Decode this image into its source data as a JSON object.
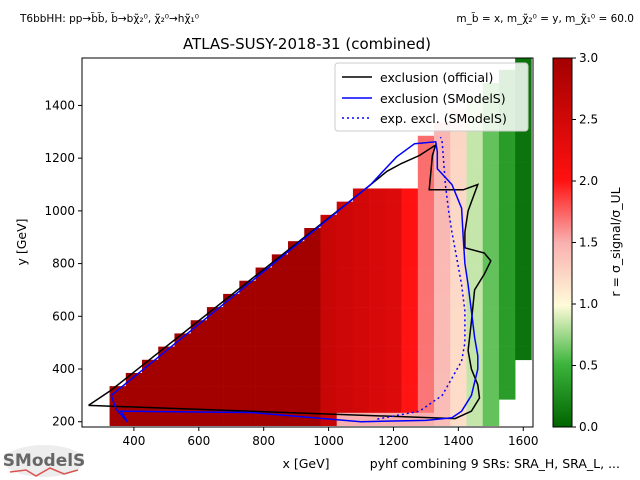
{
  "chart_data": {
    "type": "heatmap",
    "title": "ATLAS-SUSY-2018-31 (combined)",
    "top_left_label": "T6bbHH: pp→b̃b̃, b̃→bχ̃₂⁰, χ̃₂⁰→hχ̃₁⁰",
    "top_right_label": "m_b̃ = x, m_χ̃₂⁰ = y, m_χ̃₁⁰ = 60.0",
    "xlabel": "x [GeV]",
    "ylabel": "y [GeV]",
    "bottom_note": "pyhf combining 9 SRs: SRA_H, SRA_L, ...",
    "colorbar_label": "r = σ_signal/σ_UL",
    "xlim": [
      240,
      1630
    ],
    "ylim": [
      180,
      1580
    ],
    "xticks": [
      400,
      600,
      800,
      1000,
      1200,
      1400,
      1600
    ],
    "yticks": [
      200,
      400,
      600,
      800,
      1000,
      1200,
      1400
    ],
    "colorbar_range": [
      0.0,
      3.0
    ],
    "colorbar_ticks": [
      0.0,
      0.5,
      1.0,
      1.5,
      2.0,
      2.5,
      3.0
    ],
    "legend": {
      "placement": "top-right",
      "entries": [
        {
          "label": "exclusion (official)",
          "color": "#000000",
          "style": "solid"
        },
        {
          "label": "exclusion (SModelS)",
          "color": "#0000ff",
          "style": "solid"
        },
        {
          "label": "exp. excl. (SModelS)",
          "color": "#0000ff",
          "style": "dotted"
        }
      ]
    },
    "grid": false,
    "exclusion_official": [
      [
        260,
        262
      ],
      [
        1390,
        212
      ],
      [
        1440,
        240
      ],
      [
        1465,
        290
      ],
      [
        1460,
        340
      ],
      [
        1440,
        400
      ],
      [
        1430,
        470
      ],
      [
        1440,
        580
      ],
      [
        1450,
        700
      ],
      [
        1480,
        760
      ],
      [
        1500,
        810
      ],
      [
        1480,
        840
      ],
      [
        1420,
        860
      ],
      [
        1420,
        920
      ],
      [
        1430,
        1000
      ],
      [
        1460,
        1100
      ],
      [
        1415,
        1080
      ],
      [
        1310,
        1080
      ],
      [
        1320,
        1210
      ],
      [
        1330,
        1250
      ],
      [
        1280,
        1210
      ],
      [
        1225,
        1180
      ],
      [
        1180,
        1150
      ],
      [
        1120,
        1090
      ],
      [
        330,
        320
      ],
      [
        260,
        262
      ]
    ],
    "exclusion_smodels": [
      [
        380,
        200
      ],
      [
        345,
        248
      ],
      [
        330,
        300
      ],
      [
        1130,
        1100
      ],
      [
        1175,
        1160
      ],
      [
        1210,
        1205
      ],
      [
        1265,
        1255
      ],
      [
        1330,
        1262
      ],
      [
        1335,
        1225
      ],
      [
        1335,
        1160
      ],
      [
        1380,
        1100
      ],
      [
        1410,
        1010
      ],
      [
        1415,
        900
      ],
      [
        1420,
        800
      ],
      [
        1430,
        720
      ],
      [
        1440,
        620
      ],
      [
        1450,
        520
      ],
      [
        1460,
        450
      ],
      [
        1460,
        400
      ],
      [
        1440,
        300
      ],
      [
        1410,
        240
      ],
      [
        1380,
        215
      ],
      [
        1300,
        205
      ],
      [
        1100,
        200
      ],
      [
        760,
        235
      ],
      [
        360,
        240
      ],
      [
        380,
        200
      ]
    ],
    "expected_smodels": [
      [
        1150,
        210
      ],
      [
        1280,
        240
      ],
      [
        1350,
        300
      ],
      [
        1410,
        430
      ],
      [
        1420,
        500
      ],
      [
        1420,
        620
      ],
      [
        1410,
        720
      ],
      [
        1395,
        820
      ],
      [
        1380,
        920
      ],
      [
        1370,
        1000
      ],
      [
        1360,
        1100
      ],
      [
        1355,
        1180
      ],
      [
        1350,
        1260
      ],
      [
        1345,
        1280
      ]
    ]
  },
  "logo": {
    "text": "SModelS"
  }
}
